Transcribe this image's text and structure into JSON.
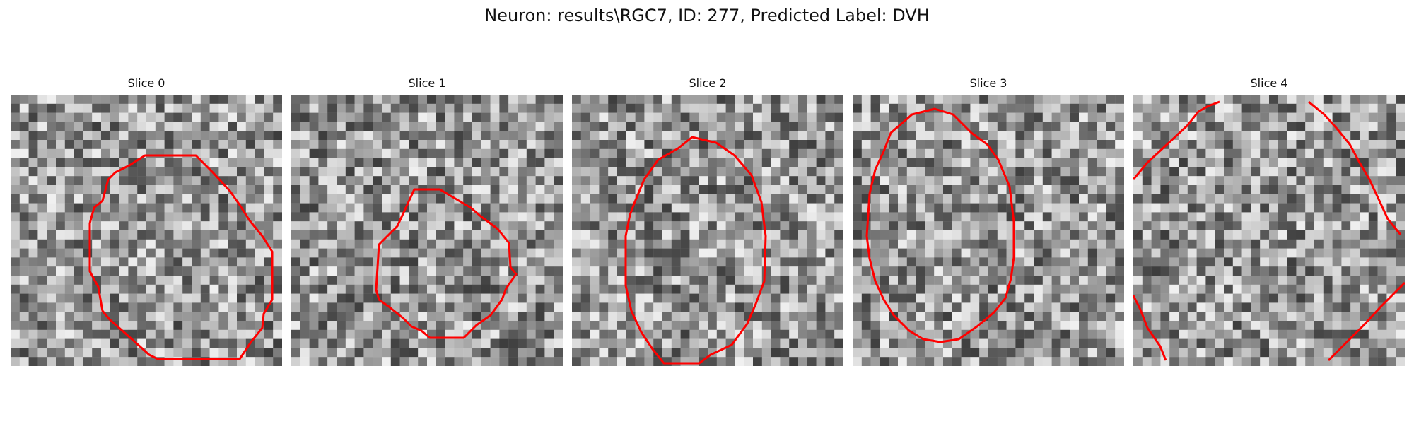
{
  "figure": {
    "title": "Neuron: results\\RGC7, ID: 277, Predicted Label: DVH"
  },
  "colors": {
    "contour": "#ff0000",
    "background": "#ffffff"
  },
  "slices": [
    {
      "label": "Slice 0"
    },
    {
      "label": "Slice 1"
    },
    {
      "label": "Slice 2"
    },
    {
      "label": "Slice 3"
    },
    {
      "label": "Slice 4"
    }
  ]
}
